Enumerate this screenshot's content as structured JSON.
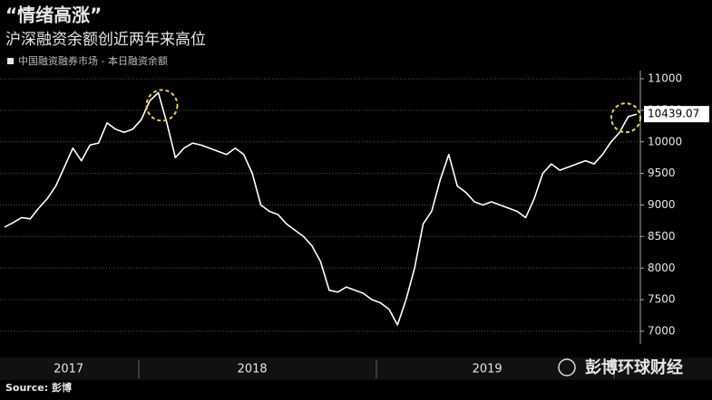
{
  "chart_data": {
    "type": "line",
    "title": "“情绪高涨”",
    "subtitle": "沪深融资余额创近两年来高位",
    "source": "Source: 彭博",
    "watermark": "彭博环球财经",
    "series": [
      {
        "name": "中国融资融券市场 - 本日融资余额",
        "color": "#ffffff",
        "values": [
          8650,
          8720,
          8800,
          8780,
          8950,
          9100,
          9300,
          9600,
          9900,
          9700,
          9950,
          9980,
          10300,
          10200,
          10150,
          10200,
          10350,
          10650,
          10780,
          10300,
          9750,
          9900,
          9980,
          9950,
          9900,
          9850,
          9800,
          9900,
          9800,
          9500,
          9000,
          8900,
          8850,
          8700,
          8600,
          8500,
          8350,
          8100,
          7650,
          7620,
          7700,
          7650,
          7600,
          7500,
          7450,
          7350,
          7100,
          7500,
          8000,
          8700,
          8900,
          9400,
          9800,
          9300,
          9200,
          9050,
          9000,
          9050,
          9000,
          8950,
          8900,
          8800,
          9100,
          9500,
          9650,
          9550,
          9600,
          9650,
          9700,
          9650,
          9800,
          10000,
          10150,
          10400,
          10439.07
        ]
      }
    ],
    "xlim": [
      0,
      74
    ],
    "xticks": [
      {
        "value": 7.5,
        "label": "2017"
      },
      {
        "value": 29,
        "label": "2018"
      },
      {
        "value": 56.5,
        "label": "2019"
      }
    ],
    "ylim": [
      7000,
      11000
    ],
    "yticks": [
      7000,
      7500,
      8000,
      8500,
      9000,
      9500,
      10000,
      10500,
      11000
    ],
    "grid": true
  }
}
